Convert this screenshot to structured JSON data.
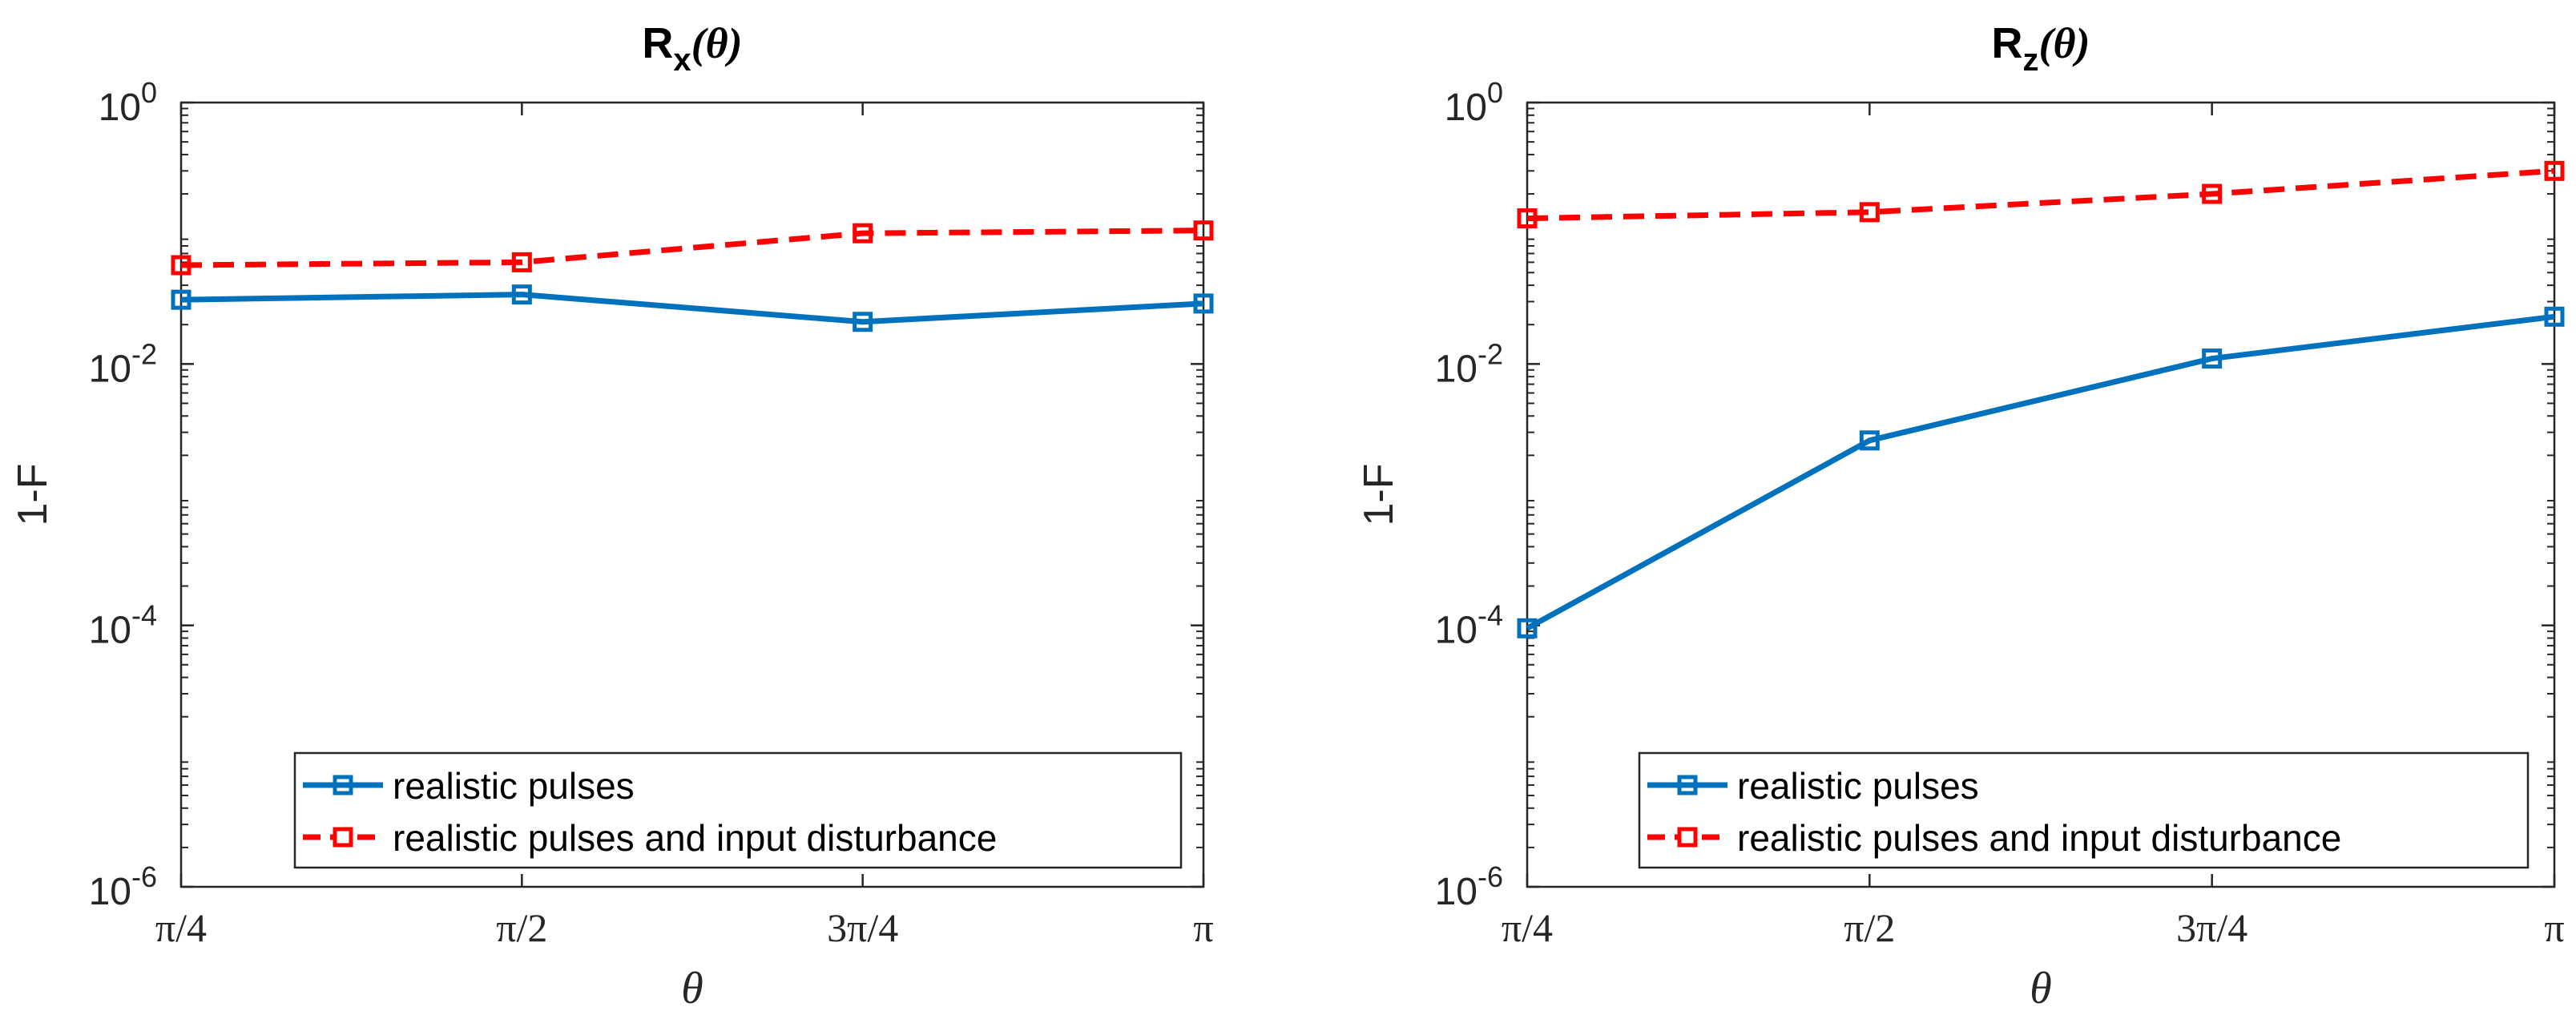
{
  "chart_data": [
    {
      "type": "line",
      "title": "R",
      "title_sub": "x",
      "title_arg": "(θ)",
      "xlabel": "θ",
      "ylabel": "1-F",
      "yscale": "log",
      "ylim": [
        1e-06,
        1
      ],
      "xlim": [
        1,
        4
      ],
      "grid": false,
      "legend_position": "bottom-right",
      "x": [
        1,
        2,
        3,
        4
      ],
      "xticks": [
        "π/4",
        "π/2",
        "3π/4",
        "π"
      ],
      "yticks": [
        {
          "base": "10",
          "exp": "0",
          "value": 1
        },
        {
          "base": "10",
          "exp": "-2",
          "value": 0.01
        },
        {
          "base": "10",
          "exp": "-4",
          "value": 0.0001
        },
        {
          "base": "10",
          "exp": "-6",
          "value": 1e-06
        }
      ],
      "series": [
        {
          "name": "realistic pulses",
          "color": "#0072BD",
          "style": "solid",
          "marker": "square",
          "values": [
            0.031,
            0.034,
            0.021,
            0.029
          ]
        },
        {
          "name": "realistic pulses and input disturbance",
          "color": "#FF0000",
          "style": "dashed",
          "marker": "square",
          "values": [
            0.057,
            0.06,
            0.1,
            0.105
          ]
        }
      ]
    },
    {
      "type": "line",
      "title": "R",
      "title_sub": "z",
      "title_arg": "(θ)",
      "xlabel": "θ",
      "ylabel": "1-F",
      "yscale": "log",
      "ylim": [
        1e-06,
        1
      ],
      "xlim": [
        1,
        4
      ],
      "grid": false,
      "legend_position": "bottom-right",
      "x": [
        1,
        2,
        3,
        4
      ],
      "xticks": [
        "π/4",
        "π/2",
        "3π/4",
        "π"
      ],
      "yticks": [
        {
          "base": "10",
          "exp": "0",
          "value": 1
        },
        {
          "base": "10",
          "exp": "-2",
          "value": 0.01
        },
        {
          "base": "10",
          "exp": "-4",
          "value": 0.0001
        },
        {
          "base": "10",
          "exp": "-6",
          "value": 1e-06
        }
      ],
      "series": [
        {
          "name": "realistic pulses",
          "color": "#0072BD",
          "style": "solid",
          "marker": "square",
          "values": [
            9.5e-05,
            0.0026,
            0.011,
            0.023
          ]
        },
        {
          "name": "realistic pulses and input disturbance",
          "color": "#FF0000",
          "style": "dashed",
          "marker": "square",
          "values": [
            0.13,
            0.145,
            0.2,
            0.3
          ]
        }
      ]
    }
  ]
}
